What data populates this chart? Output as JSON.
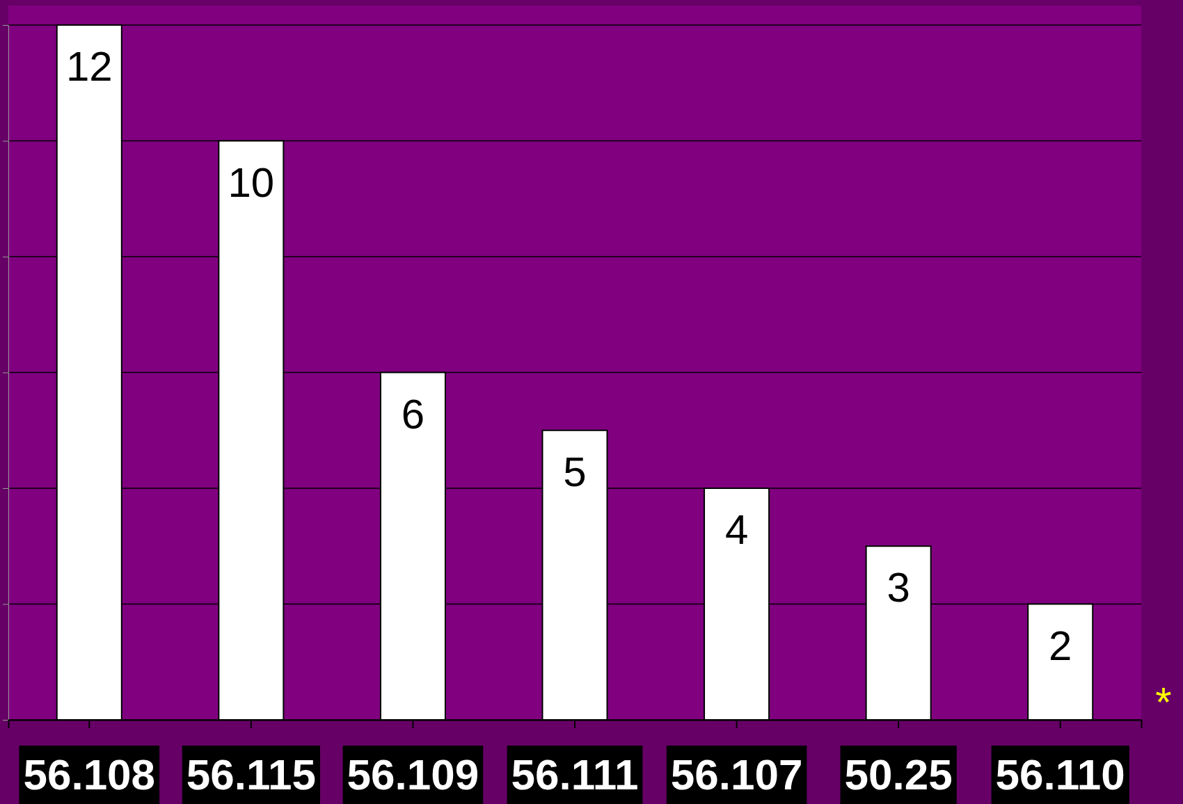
{
  "chart_data": {
    "type": "bar",
    "categories": [
      "56.108",
      "56.115",
      "56.109",
      "56.111",
      "56.107",
      "50.25",
      "56.110"
    ],
    "values": [
      12,
      10,
      6,
      5,
      4,
      3,
      2
    ],
    "color": "#ffffff",
    "ylim": [
      0,
      12
    ],
    "yticks": [
      {
        "value": 0,
        "label": null
      },
      {
        "value": 2,
        "label": null
      },
      {
        "value": 4,
        "label": null
      },
      {
        "value": 6,
        "label": null
      },
      {
        "value": 8,
        "label": null
      },
      {
        "value": 10,
        "label": null
      },
      {
        "value": 12,
        "label": null
      }
    ],
    "tick_labels": "x",
    "grid": "y",
    "data_labels": true,
    "annotations": [
      "*"
    ]
  }
}
